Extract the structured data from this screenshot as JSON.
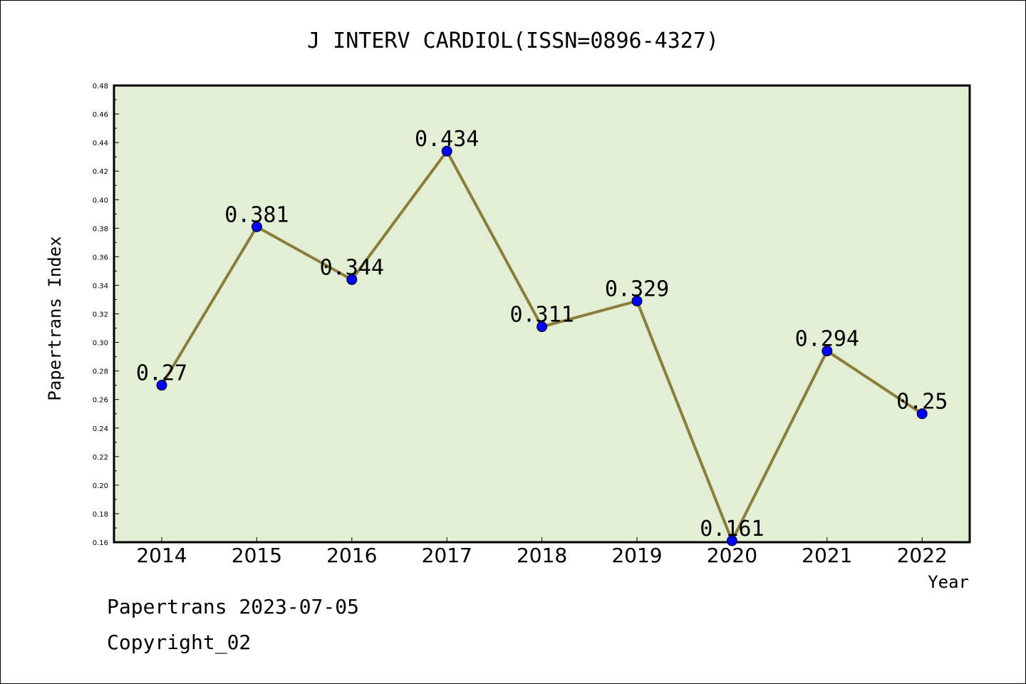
{
  "chart_data": {
    "type": "line",
    "title": "J INTERV CARDIOL(ISSN=0896-4327)",
    "xlabel": "Year",
    "ylabel": "Papertrans Index",
    "categories": [
      "2014",
      "2015",
      "2016",
      "2017",
      "2018",
      "2019",
      "2020",
      "2021",
      "2022"
    ],
    "series": [
      {
        "values": [
          0.27,
          0.381,
          0.344,
          0.434,
          0.311,
          0.329,
          0.161,
          0.294,
          0.25
        ],
        "labels": [
          "0.27",
          "0.381",
          "0.344",
          "0.434",
          "0.311",
          "0.329",
          "0.161",
          "0.294",
          "0.25"
        ]
      }
    ],
    "ylim": [
      0.16,
      0.48
    ],
    "yticks": [
      "0.16",
      "0.18",
      "0.20",
      "0.22",
      "0.24",
      "0.26",
      "0.28",
      "0.30",
      "0.32",
      "0.34",
      "0.36",
      "0.38",
      "0.40",
      "0.42",
      "0.44",
      "0.46",
      "0.48"
    ],
    "grid": false,
    "colors": {
      "plot_background": "#e2efd5",
      "line": "#8b7d3a",
      "marker": "#0000ff"
    }
  },
  "footer": {
    "date_text": "Papertrans 2023-07-05",
    "copyright": "Copyright_02"
  }
}
